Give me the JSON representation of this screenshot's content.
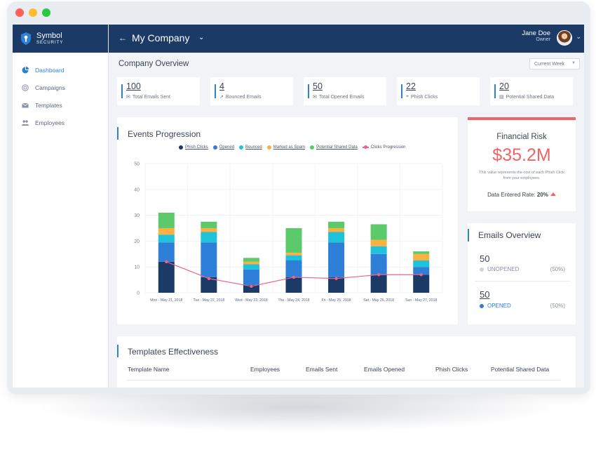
{
  "brand": {
    "name": "Symbol",
    "sub": "SECURITY"
  },
  "sidebar": {
    "items": [
      {
        "label": "Dashboard",
        "icon": "pie-chart-icon",
        "active": true
      },
      {
        "label": "Campaigns",
        "icon": "target-icon",
        "active": false
      },
      {
        "label": "Templates",
        "icon": "envelope-icon",
        "active": false
      },
      {
        "label": "Employees",
        "icon": "people-icon",
        "active": false
      }
    ]
  },
  "header": {
    "back": "←",
    "company": "My Company",
    "caret": "⌄",
    "user_name": "Jane Doe",
    "user_role": "Owner"
  },
  "overview": {
    "title": "Company Overview",
    "period": "Current Week",
    "stats": [
      {
        "value": "100",
        "label": "Total Emails Sent",
        "icon": "✉"
      },
      {
        "value": "4",
        "label": "Bounced Emails",
        "icon": "↗"
      },
      {
        "value": "50",
        "label": "Total Opened Emails",
        "icon": "✉"
      },
      {
        "value": "22",
        "label": "Phish Clicks",
        "icon": "⌖"
      },
      {
        "value": "20",
        "label": "Potential Shared Data",
        "icon": "▤"
      }
    ]
  },
  "events": {
    "title": "Events Progression",
    "legend": [
      {
        "label": "Phish Clicks",
        "color": "#1b3a66"
      },
      {
        "label": "Opened",
        "color": "#2d7fd8"
      },
      {
        "label": "Bounced",
        "color": "#1fc2db"
      },
      {
        "label": "Marked as Spam",
        "color": "#fbb040"
      },
      {
        "label": "Potential Shared Data",
        "color": "#5cc96b"
      }
    ],
    "line_label": "Clicks Progression",
    "line_color": "#f0618f"
  },
  "chart_data": {
    "type": "bar",
    "stacked": true,
    "categories": [
      "Mon - May 21, 2018",
      "Tue - May 22, 2018",
      "Wed - May 23, 2018",
      "Thu - May 24, 2018",
      "Fri - May 25, 2018",
      "Sat - May 26, 2018",
      "Sun - May 27, 2018"
    ],
    "series": [
      {
        "name": "Phish Clicks",
        "color": "#1b3a66",
        "values": [
          12,
          6,
          3,
          6,
          6,
          7,
          7
        ]
      },
      {
        "name": "Opened",
        "color": "#2d7fd8",
        "values": [
          7.5,
          13.5,
          6,
          6.5,
          13.5,
          8,
          3
        ]
      },
      {
        "name": "Bounced",
        "color": "#1fc2db",
        "values": [
          3,
          4,
          2,
          2,
          4,
          3,
          2.5
        ]
      },
      {
        "name": "Marked as Spam",
        "color": "#fbb040",
        "values": [
          2.5,
          1.5,
          1,
          1,
          1.5,
          2.5,
          2.5
        ]
      },
      {
        "name": "Potential Shared Data",
        "color": "#5cc96b",
        "values": [
          6,
          2.5,
          1.5,
          9.5,
          2.5,
          6,
          1
        ]
      }
    ],
    "line": {
      "name": "Clicks Progression",
      "color": "#f0618f",
      "values": [
        12,
        5.5,
        2.5,
        6,
        5.5,
        7,
        7
      ]
    },
    "yticks": [
      0,
      10,
      20,
      30,
      40,
      50
    ],
    "ylim": [
      0,
      50
    ],
    "grid": true,
    "legend": "top"
  },
  "risk": {
    "title": "Financial Risk",
    "value": "$35.2M",
    "description": "This value represents the cost of each Phish Click from your employees.",
    "rate_label": "Data Entered Rate:",
    "rate_value": "20%"
  },
  "emails_overview": {
    "title": "Emails Overview",
    "unopened_count": "50",
    "unopened_label": "UNOPENED",
    "unopened_pct": "(50%)",
    "opened_count": "50",
    "opened_label": "OPENED",
    "opened_pct": "(50%)"
  },
  "templates": {
    "title": "Templates Effectiveness",
    "columns": [
      "Template Name",
      "Employees",
      "Emails Sent",
      "Emails Opened",
      "Phish Clicks",
      "Potential Shared Data"
    ]
  }
}
